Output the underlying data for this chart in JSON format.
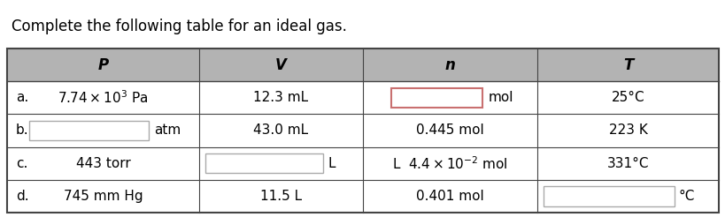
{
  "title": "Complete the following table for an ideal gas.",
  "title_fontsize": 12,
  "header": [
    "P",
    "V",
    "n",
    "T"
  ],
  "rows": [
    {
      "label": "a.",
      "P_text": "$7.74 \\times 10^3$ Pa",
      "V_text": "12.3 mL",
      "n_text": "",
      "n_suffix": "mol",
      "T_text": "25°C",
      "n_box": true,
      "n_box_color": "#c97070",
      "P_box": false,
      "V_box": false,
      "T_box": false
    },
    {
      "label": "b.",
      "P_text": "",
      "P_suffix": "atm",
      "V_text": "43.0 mL",
      "n_text": "0.445 mol",
      "T_text": "223 K",
      "n_box": false,
      "P_box": true,
      "P_box_color": "#aaaaaa",
      "V_box": false,
      "T_box": false
    },
    {
      "label": "c.",
      "P_text": "443 torr",
      "V_text": "",
      "V_suffix": "L",
      "n_text": "L  $4.4 \\times 10^{-2}$ mol",
      "T_text": "331°C",
      "n_box": false,
      "P_box": false,
      "V_box": true,
      "V_box_color": "#aaaaaa",
      "T_box": false
    },
    {
      "label": "d.",
      "P_text": "745 mm Hg",
      "V_text": "11.5 L",
      "n_text": "0.401 mol",
      "T_text": "",
      "T_suffix": "°C",
      "n_box": false,
      "P_box": false,
      "V_box": false,
      "T_box": true,
      "T_box_color": "#aaaaaa"
    }
  ],
  "col_bounds": [
    0.0,
    0.27,
    0.5,
    0.745,
    1.0
  ],
  "header_bg": "#b3b3b3",
  "border_color": "#444444",
  "background": "#ffffff",
  "font_size": 11,
  "header_font_size": 12
}
